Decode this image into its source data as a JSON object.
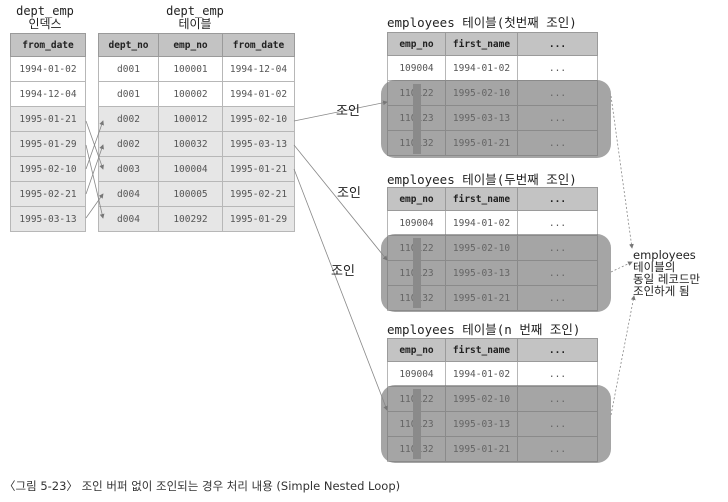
{
  "left": {
    "title_line1": "dept_emp",
    "title_line2": "인덱스",
    "header": "from_date",
    "rows": [
      "1994-01-02",
      "1994-12-04",
      "1995-01-21",
      "1995-01-29",
      "1995-02-10",
      "1995-02-21",
      "1995-03-13"
    ]
  },
  "middle": {
    "title_line1": "dept_emp",
    "title_line2": "테이블",
    "headers": [
      "dept_no",
      "emp_no",
      "from_date"
    ],
    "rows": [
      [
        "d001",
        "100001",
        "1994-12-04"
      ],
      [
        "d001",
        "100002",
        "1994-01-02"
      ],
      [
        "d002",
        "100012",
        "1995-02-10"
      ],
      [
        "d002",
        "100032",
        "1995-03-13"
      ],
      [
        "d003",
        "100004",
        "1995-01-21"
      ],
      [
        "d004",
        "100005",
        "1995-02-21"
      ],
      [
        "d004",
        "100292",
        "1995-01-29"
      ]
    ]
  },
  "emp_tables": [
    {
      "title": "employees 테이블(첫번째 조인)"
    },
    {
      "title": "employees 테이블(두번째 조인)"
    },
    {
      "title": "employees 테이블(n 번째 조인)"
    }
  ],
  "emp_headers": [
    "emp_no",
    "first_name",
    "..."
  ],
  "emp_rows": [
    [
      "109004",
      "1994-01-02",
      "..."
    ],
    [
      "110122",
      "1995-02-10",
      "..."
    ],
    [
      "110123",
      "1995-03-13",
      "..."
    ],
    [
      "110132",
      "1995-01-21",
      "..."
    ]
  ],
  "join_label": "조인",
  "note": [
    "employees",
    "테이블의",
    "동일 레코드만",
    "조인하게 됨"
  ],
  "caption": "〈그림 5-23〉 조인 버퍼 없이 조인되는 경우 처리 내용 (Simple Nested Loop)"
}
